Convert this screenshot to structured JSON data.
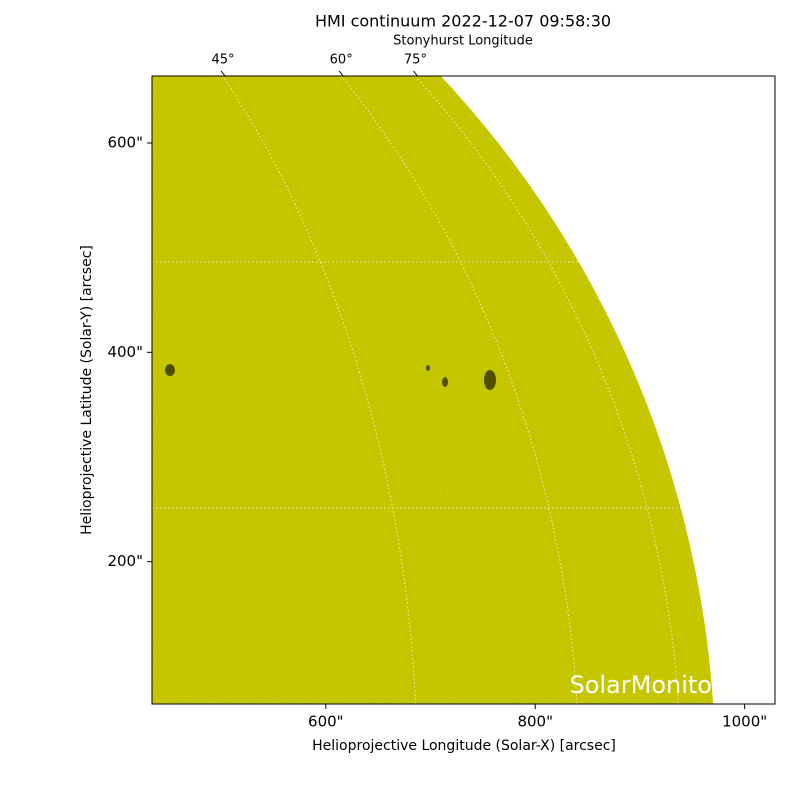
{
  "chart_data": {
    "type": "image",
    "title": "HMI continuum 2022-12-07 09:58:30",
    "x_label": "Helioprojective Longitude (Solar-X) [arcsec]",
    "y_label": "Helioprojective Latitude (Solar-Y) [arcsec]",
    "xlim": [
      434,
      1029
    ],
    "ylim": [
      64,
      664
    ],
    "xticks": [
      {
        "value": 600,
        "label": "600\""
      },
      {
        "value": 800,
        "label": "800\""
      },
      {
        "value": 1000,
        "label": "1000\""
      }
    ],
    "yticks": [
      {
        "value": 200,
        "label": "200\""
      },
      {
        "value": 400,
        "label": "400\""
      },
      {
        "value": 600,
        "label": "600\""
      }
    ],
    "top_axis": {
      "label": "Stonyhurst Longitude",
      "ticks": [
        {
          "value": 45,
          "label": "45°"
        },
        {
          "value": 60,
          "label": "60°"
        },
        {
          "value": 75,
          "label": "75°"
        }
      ]
    },
    "color": "#c8c800",
    "watermark": "SolarMonito"
  }
}
